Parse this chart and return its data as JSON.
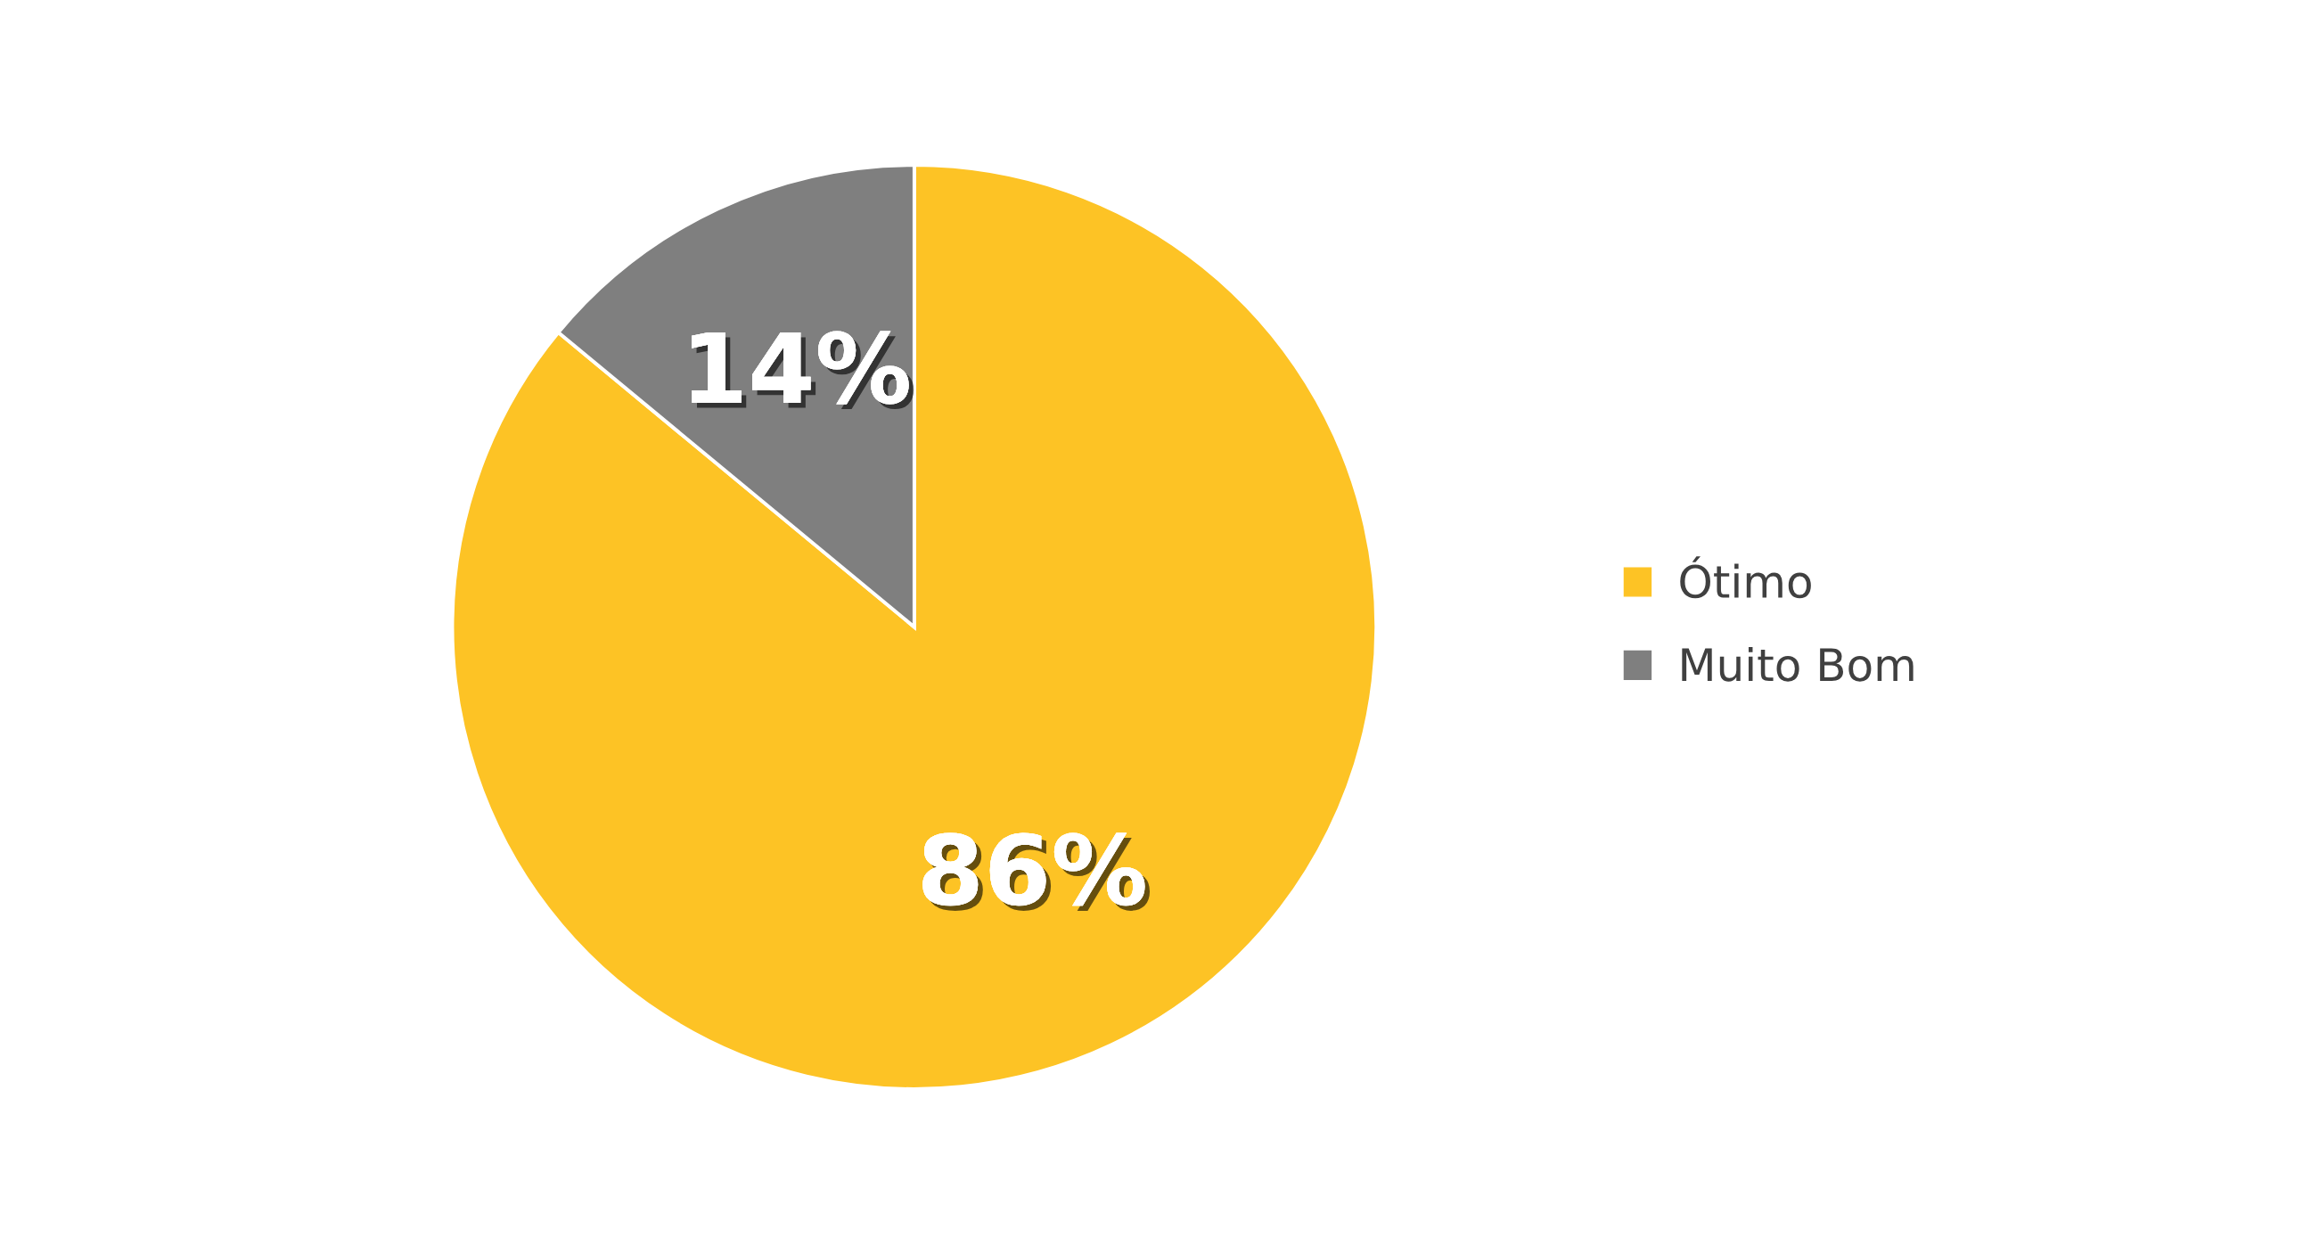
{
  "chart_data": {
    "type": "pie",
    "categories": [
      "Ótimo",
      "Muito Bom"
    ],
    "values": [
      86,
      14
    ],
    "colors": [
      "#fdc325",
      "#7f7f7f"
    ],
    "value_labels": [
      "86%",
      "14%"
    ],
    "legend": "right"
  }
}
